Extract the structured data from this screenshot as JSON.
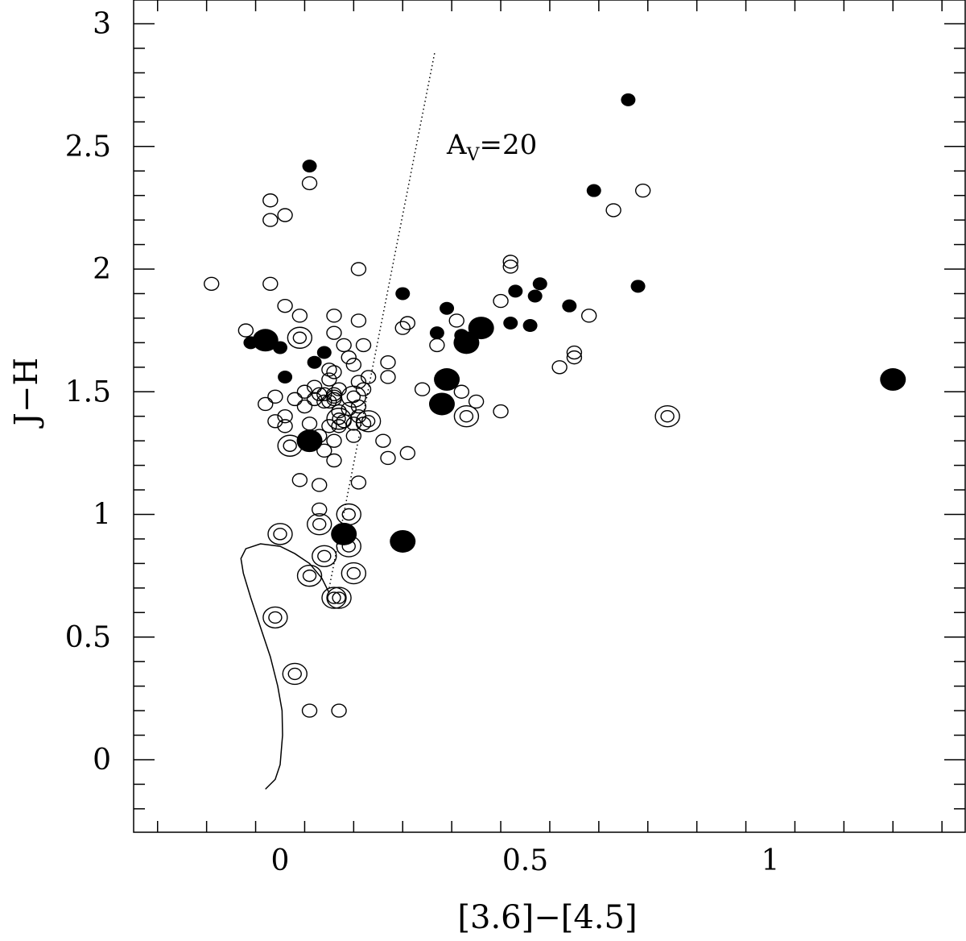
{
  "chart_data": {
    "type": "scatter",
    "xlabel": "[3.6]−[4.5]",
    "ylabel": "J−H",
    "xlim": [
      -0.3,
      1.4
    ],
    "ylim": [
      -0.3,
      3.05
    ],
    "xticks": [
      {
        "value": 0,
        "label": "0"
      },
      {
        "value": 0.5,
        "label": "0.5"
      },
      {
        "value": 1,
        "label": "1"
      }
    ],
    "yticks": [
      {
        "value": 0,
        "label": "0"
      },
      {
        "value": 0.5,
        "label": "0.5"
      },
      {
        "value": 1,
        "label": "1"
      },
      {
        "value": 1.5,
        "label": "1.5"
      },
      {
        "value": 2,
        "label": "2"
      },
      {
        "value": 2.5,
        "label": "2.5"
      },
      {
        "value": 3,
        "label": "3"
      }
    ],
    "annotation": {
      "main": "A",
      "sub": "V",
      "tail": "=20",
      "x": 0.34,
      "y": 2.47
    },
    "reddening_vector": [
      [
        0.1,
        0.7
      ],
      [
        0.315,
        2.88
      ]
    ],
    "locus": [
      [
        -0.03,
        -0.12
      ],
      [
        -0.01,
        -0.08
      ],
      [
        0.0,
        -0.02
      ],
      [
        0.005,
        0.1
      ],
      [
        0.004,
        0.2
      ],
      [
        -0.005,
        0.3
      ],
      [
        -0.02,
        0.42
      ],
      [
        -0.04,
        0.54
      ],
      [
        -0.06,
        0.66
      ],
      [
        -0.075,
        0.76
      ],
      [
        -0.08,
        0.82
      ],
      [
        -0.07,
        0.86
      ],
      [
        -0.04,
        0.88
      ],
      [
        0.0,
        0.87
      ],
      [
        0.03,
        0.84
      ],
      [
        0.06,
        0.8
      ],
      [
        0.085,
        0.74
      ],
      [
        0.1,
        0.68
      ]
    ],
    "series": [
      {
        "style": "open-small",
        "points": [
          [
            -0.14,
            1.94
          ],
          [
            -0.07,
            1.75
          ],
          [
            -0.02,
            2.28
          ],
          [
            -0.02,
            2.2
          ],
          [
            -0.02,
            1.94
          ],
          [
            0.01,
            2.22
          ],
          [
            0.01,
            1.85
          ],
          [
            0.04,
            1.81
          ],
          [
            0.06,
            2.35
          ],
          [
            -0.03,
            1.45
          ],
          [
            -0.01,
            1.48
          ],
          [
            -0.01,
            1.38
          ],
          [
            0.01,
            1.4
          ],
          [
            0.01,
            1.36
          ],
          [
            0.03,
            1.47
          ],
          [
            0.05,
            1.5
          ],
          [
            0.05,
            1.44
          ],
          [
            0.06,
            1.37
          ],
          [
            0.07,
            1.47
          ],
          [
            0.07,
            1.52
          ],
          [
            0.08,
            1.49
          ],
          [
            0.08,
            1.32
          ],
          [
            0.09,
            1.49
          ],
          [
            0.09,
            1.46
          ],
          [
            0.09,
            1.26
          ],
          [
            0.1,
            1.59
          ],
          [
            0.1,
            1.55
          ],
          [
            0.1,
            1.46
          ],
          [
            0.1,
            1.36
          ],
          [
            0.11,
            1.81
          ],
          [
            0.11,
            1.74
          ],
          [
            0.11,
            1.58
          ],
          [
            0.11,
            1.49
          ],
          [
            0.11,
            1.48
          ],
          [
            0.11,
            1.47
          ],
          [
            0.11,
            1.3
          ],
          [
            0.11,
            1.22
          ],
          [
            0.12,
            1.51
          ],
          [
            0.12,
            1.42
          ],
          [
            0.12,
            1.36
          ],
          [
            0.13,
            1.69
          ],
          [
            0.13,
            1.38
          ],
          [
            0.14,
            1.64
          ],
          [
            0.14,
            1.43
          ],
          [
            0.15,
            1.61
          ],
          [
            0.15,
            1.37
          ],
          [
            0.15,
            1.32
          ],
          [
            0.16,
            1.54
          ],
          [
            0.16,
            1.44
          ],
          [
            0.16,
            1.4
          ],
          [
            0.16,
            1.79
          ],
          [
            0.16,
            2.0
          ],
          [
            0.17,
            1.69
          ],
          [
            0.17,
            1.51
          ],
          [
            0.17,
            1.37
          ],
          [
            0.18,
            1.56
          ],
          [
            0.04,
            1.14
          ],
          [
            0.08,
            1.12
          ],
          [
            0.16,
            1.13
          ],
          [
            0.08,
            1.02
          ],
          [
            0.06,
            0.2
          ],
          [
            0.12,
            0.2
          ],
          [
            0.21,
            1.3
          ],
          [
            0.22,
            1.56
          ],
          [
            0.22,
            1.62
          ],
          [
            0.22,
            1.23
          ],
          [
            0.25,
            1.76
          ],
          [
            0.26,
            1.78
          ],
          [
            0.26,
            1.25
          ],
          [
            0.29,
            1.51
          ],
          [
            0.32,
            1.69
          ],
          [
            0.36,
            1.79
          ],
          [
            0.37,
            1.5
          ],
          [
            0.4,
            1.46
          ],
          [
            0.45,
            1.87
          ],
          [
            0.45,
            1.42
          ],
          [
            0.47,
            2.03
          ],
          [
            0.47,
            2.01
          ],
          [
            0.57,
            1.6
          ],
          [
            0.6,
            1.66
          ],
          [
            0.6,
            1.64
          ],
          [
            0.63,
            1.81
          ],
          [
            0.68,
            2.24
          ],
          [
            0.74,
            2.32
          ]
        ]
      },
      {
        "style": "open-double",
        "points": [
          [
            0.04,
            1.72
          ],
          [
            0.02,
            1.28
          ],
          [
            -0.01,
            0.58
          ],
          [
            0.03,
            0.35
          ],
          [
            0.0,
            0.92
          ],
          [
            0.08,
            0.96
          ],
          [
            0.06,
            0.75
          ],
          [
            0.09,
            0.83
          ],
          [
            0.11,
            0.66
          ],
          [
            0.12,
            0.66
          ],
          [
            0.12,
            1.39
          ],
          [
            0.14,
            1.0
          ],
          [
            0.14,
            0.87
          ],
          [
            0.15,
            0.76
          ],
          [
            0.15,
            1.48
          ],
          [
            0.18,
            1.38
          ],
          [
            0.38,
            1.4
          ],
          [
            0.79,
            1.4
          ]
        ]
      },
      {
        "style": "filled-small",
        "points": [
          [
            0.06,
            2.42
          ],
          [
            -0.06,
            1.7
          ],
          [
            -0.03,
            1.7
          ],
          [
            0.0,
            1.68
          ],
          [
            0.01,
            1.56
          ],
          [
            0.07,
            1.62
          ],
          [
            0.09,
            1.66
          ],
          [
            0.25,
            1.9
          ],
          [
            0.32,
            1.74
          ],
          [
            0.34,
            1.84
          ],
          [
            0.37,
            1.73
          ],
          [
            0.47,
            1.78
          ],
          [
            0.48,
            1.91
          ],
          [
            0.51,
            1.77
          ],
          [
            0.52,
            1.89
          ],
          [
            0.53,
            1.94
          ],
          [
            0.59,
            1.85
          ],
          [
            0.64,
            2.32
          ],
          [
            0.71,
            2.69
          ],
          [
            0.73,
            1.93
          ]
        ]
      },
      {
        "style": "filled-large",
        "points": [
          [
            -0.03,
            1.71
          ],
          [
            0.06,
            1.3
          ],
          [
            0.13,
            0.92
          ],
          [
            0.25,
            0.89
          ],
          [
            0.33,
            1.45
          ],
          [
            0.34,
            1.55
          ],
          [
            0.38,
            1.7
          ],
          [
            0.41,
            1.76
          ],
          [
            1.25,
            1.55
          ]
        ]
      }
    ]
  }
}
